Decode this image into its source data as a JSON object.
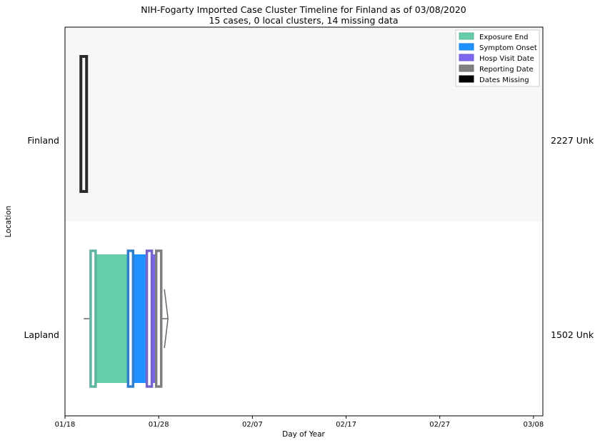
{
  "chart_data": {
    "type": "timeline",
    "title": "NIH-Fogarty Imported Case Cluster Timeline for Finland as of 03/08/2020",
    "subtitle": "15 cases, 0 local clusters, 14 missing data",
    "xlabel": "Day of Year",
    "ylabel": "Location",
    "x_range": [
      "01/18",
      "03/09"
    ],
    "x_ticks": [
      "01/18",
      "01/28",
      "02/07",
      "02/17",
      "02/27",
      "03/08"
    ],
    "grid": false,
    "legend_position": "top-right",
    "legend": [
      {
        "label": "Exposure End",
        "color": "#66cdaa"
      },
      {
        "label": "Symptom Onset",
        "color": "#1e90ff"
      },
      {
        "label": "Hosp Visit Date",
        "color": "#7b68ee"
      },
      {
        "label": "Reporting Date",
        "color": "#808080"
      },
      {
        "label": "Dates Missing",
        "color": "#000000"
      }
    ],
    "rows": [
      {
        "location": "Finland",
        "right_label": "2227 Unk",
        "shaded": true,
        "dates_missing": "01/20"
      },
      {
        "location": "Lapland",
        "right_label": "1502 Unk",
        "shaded": false,
        "exposure_end": "01/21",
        "symptom_onset": "01/25",
        "hosp_visit": "01/27",
        "reporting_date": "01/28",
        "whisker_start": "01/20",
        "whisker_end": "01/29"
      }
    ]
  }
}
